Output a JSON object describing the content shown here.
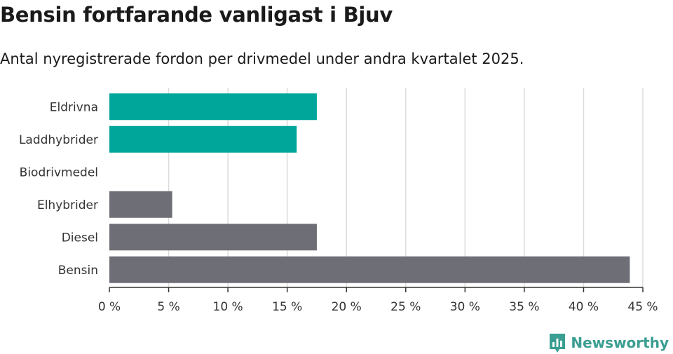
{
  "title": "Bensin fortfarande vanligast i Bjuv",
  "subtitle": "Antal nyregistrerade fordon per drivmedel under andra kvartalet 2025.",
  "brand": "Newsworthy",
  "colors": {
    "electric": "#00a69a",
    "other": "#6e6e76",
    "grid": "#dcdcdc",
    "axis": "#333333"
  },
  "chart_data": {
    "type": "bar",
    "orientation": "horizontal",
    "categories": [
      "Eldrivna",
      "Laddhybrider",
      "Biodrivmedel",
      "Elhybrider",
      "Diesel",
      "Bensin"
    ],
    "values": [
      17.5,
      15.8,
      0,
      5.3,
      17.5,
      43.9
    ],
    "value_unit": "%",
    "xlim": [
      0,
      45
    ],
    "xticks": [
      "0 %",
      "5 %",
      "10 %",
      "15 %",
      "20 %",
      "25 %",
      "30 %",
      "35 %",
      "40 %",
      "45 %"
    ],
    "bar_colors": [
      "#00a69a",
      "#00a69a",
      "#6e6e76",
      "#6e6e76",
      "#6e6e76",
      "#6e6e76"
    ],
    "grid": true
  }
}
